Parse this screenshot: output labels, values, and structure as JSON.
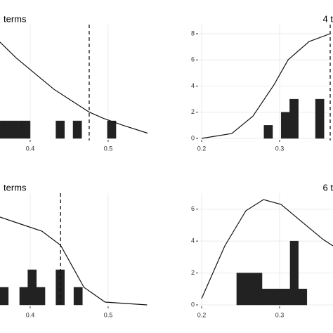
{
  "chart_data": [
    {
      "type": "histogram",
      "title": "terms",
      "bins": [
        0.356,
        0.367,
        0.378,
        0.389,
        0.4,
        0.411,
        0.422,
        0.433,
        0.444,
        0.455,
        0.466,
        0.477,
        0.488,
        0.499,
        0.51,
        0.521
      ],
      "counts": [
        1,
        1,
        1,
        1,
        0,
        0,
        0,
        1,
        0,
        1,
        0,
        0,
        0,
        1,
        0
      ],
      "density": {
        "x": [
          0.3613,
          0.382,
          0.4063,
          0.4306,
          0.455,
          0.4757,
          0.4936,
          0.5189,
          0.5505
        ],
        "y": [
          5.5,
          4.6,
          3.7,
          2.8,
          2.1,
          1.5,
          1.15,
          0.75,
          0.3
        ]
      },
      "vline": 0.4757,
      "xlim": [
        0.3613,
        0.5505
      ],
      "ylim": [
        0,
        6.5
      ],
      "xticks": [
        0.4,
        0.5
      ],
      "yticks": [],
      "grid": true
    },
    {
      "type": "histogram",
      "title": "4 t",
      "bins": [
        0.28,
        0.291,
        0.302,
        0.313,
        0.324,
        0.335,
        0.346,
        0.357
      ],
      "counts": [
        1,
        0,
        2,
        3,
        0,
        0,
        3
      ],
      "density": {
        "x": [
          0.2,
          0.2387,
          0.2658,
          0.2928,
          0.3108,
          0.3378,
          0.3648
        ],
        "y": [
          0,
          0.37,
          1.7,
          4.1,
          6,
          7.4,
          8
        ]
      },
      "vline": 0.3649,
      "xlim": [
        0.1964,
        0.3685
      ],
      "ylim": [
        0,
        8.7
      ],
      "xticks": [
        0.2,
        0.3
      ],
      "yticks": [
        0,
        2,
        4,
        6,
        8
      ],
      "grid": true
    },
    {
      "type": "histogram",
      "title": "terms",
      "bins": [
        0.361,
        0.372,
        0.3865,
        0.397,
        0.408,
        0.419,
        0.433,
        0.444,
        0.456,
        0.467
      ],
      "counts": [
        1,
        0,
        1,
        2,
        1,
        0,
        2,
        0,
        1
      ],
      "density": {
        "x": [
          0.3613,
          0.388,
          0.415,
          0.439,
          0.469,
          0.496,
          0.55
        ],
        "y": [
          5,
          4.6,
          4.2,
          3.4,
          1,
          0.16,
          0
        ]
      },
      "vline": 0.439,
      "xlim": [
        0.3613,
        0.5505
      ],
      "ylim": [
        0,
        6.36
      ],
      "xticks": [
        0.4,
        0.5
      ],
      "yticks": [],
      "grid": true
    },
    {
      "type": "histogram",
      "title": "6 t",
      "bins": [
        0.245,
        0.2775,
        0.3135,
        0.324,
        0.335
      ],
      "counts": [
        2,
        1,
        4,
        1
      ],
      "density": {
        "x": [
          0.2,
          0.2297,
          0.2568,
          0.2793,
          0.3018,
          0.3288,
          0.3559,
          0.3685
        ],
        "y": [
          0.4,
          3.7,
          5.9,
          6.6,
          6.3,
          5.2,
          4.1,
          3.7
        ]
      },
      "xlim": [
        0.1964,
        0.3685
      ],
      "ylim": [
        0,
        7.0
      ],
      "xticks": [
        0.2,
        0.3
      ],
      "yticks": [
        0,
        2,
        4,
        6
      ],
      "grid": true
    }
  ]
}
